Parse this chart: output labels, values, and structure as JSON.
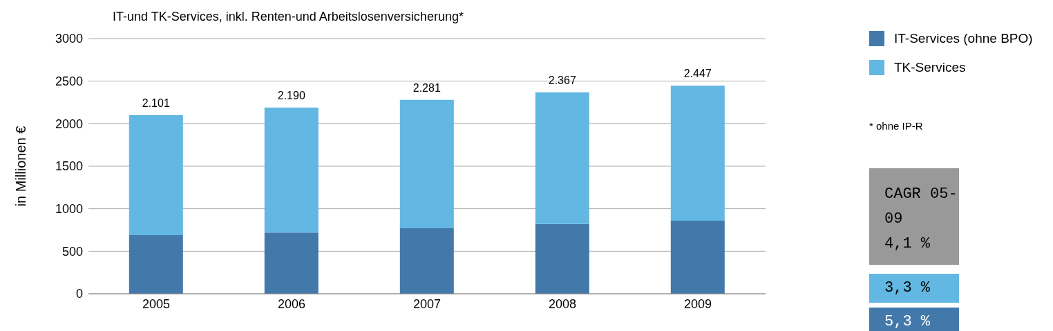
{
  "chart_data": {
    "type": "bar",
    "title": "IT-und TK-Services, inkl. Renten-und Arbeitslosenversicherung*",
    "ylabel": "in Millionen €",
    "categories": [
      "2005",
      "2006",
      "2007",
      "2008",
      "2009"
    ],
    "series": [
      {
        "name": "IT-Services (ohne BPO)",
        "color": "#4379aa",
        "values": [
          690,
          720,
          770,
          820,
          860
        ]
      },
      {
        "name": "TK-Services",
        "color": "#63b7e3",
        "values": [
          1411,
          1470,
          1511,
          1547,
          1587
        ]
      }
    ],
    "stacked": true,
    "totals": [
      "2.101",
      "2.190",
      "2.281",
      "2.367",
      "2.447"
    ],
    "ylim": [
      0,
      3000
    ],
    "yticks": [
      0,
      500,
      1000,
      1500,
      2000,
      2500,
      3000
    ],
    "grid": "y",
    "legend": "top right",
    "annotations": [
      "* ohne IP-R",
      "CAGR 05-09",
      "4,1 %",
      "3,3 %",
      "5,3 %"
    ]
  }
}
